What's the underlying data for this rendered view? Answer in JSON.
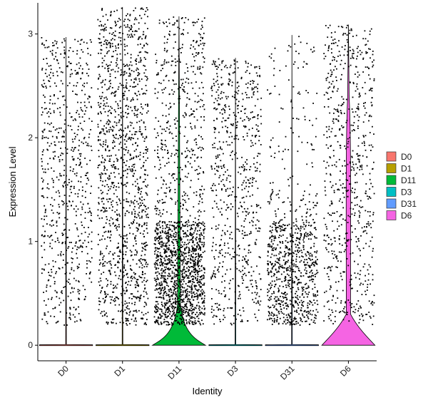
{
  "chart_data": {
    "type": "violin",
    "title": "",
    "xlabel": "Identity",
    "ylabel": "Expression Level",
    "ylim": [
      -0.15,
      3.3
    ],
    "yticks": [
      "0",
      "1",
      "2",
      "3"
    ],
    "grid": false,
    "legend_position": "right",
    "categories": [
      "D0",
      "D1",
      "D11",
      "D3",
      "D31",
      "D6"
    ],
    "series": [
      {
        "name": "D0",
        "color": "#F8766D",
        "max": 2.97,
        "zero_width": 0.42,
        "points": 700,
        "density": "uniform"
      },
      {
        "name": "D1",
        "color": "#B79F00",
        "max": 3.26,
        "zero_width": 0.42,
        "points": 1300,
        "density": "uniform"
      },
      {
        "name": "D11",
        "color": "#00BA38",
        "max": 3.17,
        "zero_width": 0.42,
        "points": 1800,
        "density": "low-heavy"
      },
      {
        "name": "D3",
        "color": "#00BFC4",
        "max": 2.77,
        "zero_width": 0.42,
        "points": 700,
        "density": "uniform"
      },
      {
        "name": "D31",
        "color": "#619CFF",
        "max": 2.99,
        "zero_width": 0.42,
        "points": 900,
        "density": "low-heavy"
      },
      {
        "name": "D6",
        "color": "#F564E3",
        "max": 3.09,
        "zero_width": 0.42,
        "points": 700,
        "density": "uniform"
      }
    ]
  }
}
